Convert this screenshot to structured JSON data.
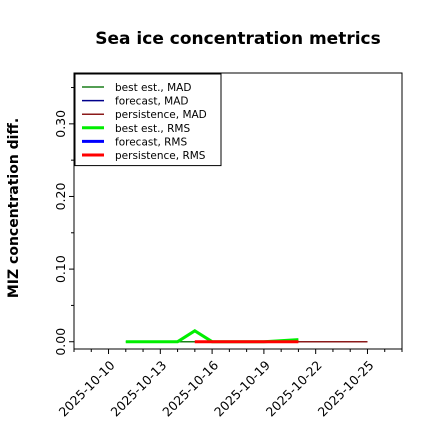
{
  "chart_data": {
    "type": "line",
    "title": "Sea ice concentration metrics",
    "xlabel": "",
    "ylabel": "MIZ concentration diff.",
    "ylim": [
      -0.01,
      0.37
    ],
    "xlim": [
      "2025-10-08",
      "2025-10-27"
    ],
    "grid": false,
    "legend_position": "top-left",
    "yticks": [
      0.0,
      0.1,
      0.2,
      0.3
    ],
    "ytick_labels": [
      "0.00",
      "0.10",
      "0.20",
      "0.30"
    ],
    "yticks_minor": [
      0.05,
      0.15,
      0.25,
      0.35
    ],
    "xticks": [
      "2025-10-10",
      "2025-10-13",
      "2025-10-16",
      "2025-10-19",
      "2025-10-22",
      "2025-10-25"
    ],
    "xtick_highlight": "2025-10-16",
    "xtick_highlight_color": "#228b22",
    "series": [
      {
        "name": "best est., MAD",
        "color": "#1a7f1a",
        "width": 1.5,
        "points": [
          [
            "2025-10-11",
            0.0
          ],
          [
            "2025-10-14",
            0.0
          ],
          [
            "2025-10-15",
            0.0
          ],
          [
            "2025-10-16",
            0.0
          ]
        ]
      },
      {
        "name": "forecast,  MAD",
        "color": "#00008b",
        "width": 1.5,
        "points": [
          [
            "2025-10-15",
            0.0
          ],
          [
            "2025-10-25",
            0.0
          ]
        ]
      },
      {
        "name": "persistence, MAD",
        "color": "#8b1a1a",
        "width": 1.5,
        "points": [
          [
            "2025-10-15",
            0.0
          ],
          [
            "2025-10-25",
            0.0
          ]
        ]
      },
      {
        "name": "best est., RMS",
        "color": "#00ee00",
        "width": 3,
        "points": [
          [
            "2025-10-11",
            0.0
          ],
          [
            "2025-10-14",
            0.0
          ],
          [
            "2025-10-15",
            0.015
          ],
          [
            "2025-10-16",
            0.0
          ],
          [
            "2025-10-19",
            0.0
          ],
          [
            "2025-10-21",
            0.003
          ]
        ]
      },
      {
        "name": "forecast,  RMS",
        "color": "#0000ff",
        "width": 3,
        "points": []
      },
      {
        "name": "persistence, RMS",
        "color": "#ff0000",
        "width": 3,
        "points": [
          [
            "2025-10-15",
            0.0
          ],
          [
            "2025-10-16",
            0.0
          ],
          [
            "2025-10-19",
            0.0
          ],
          [
            "2025-10-21",
            0.0
          ]
        ]
      }
    ]
  }
}
